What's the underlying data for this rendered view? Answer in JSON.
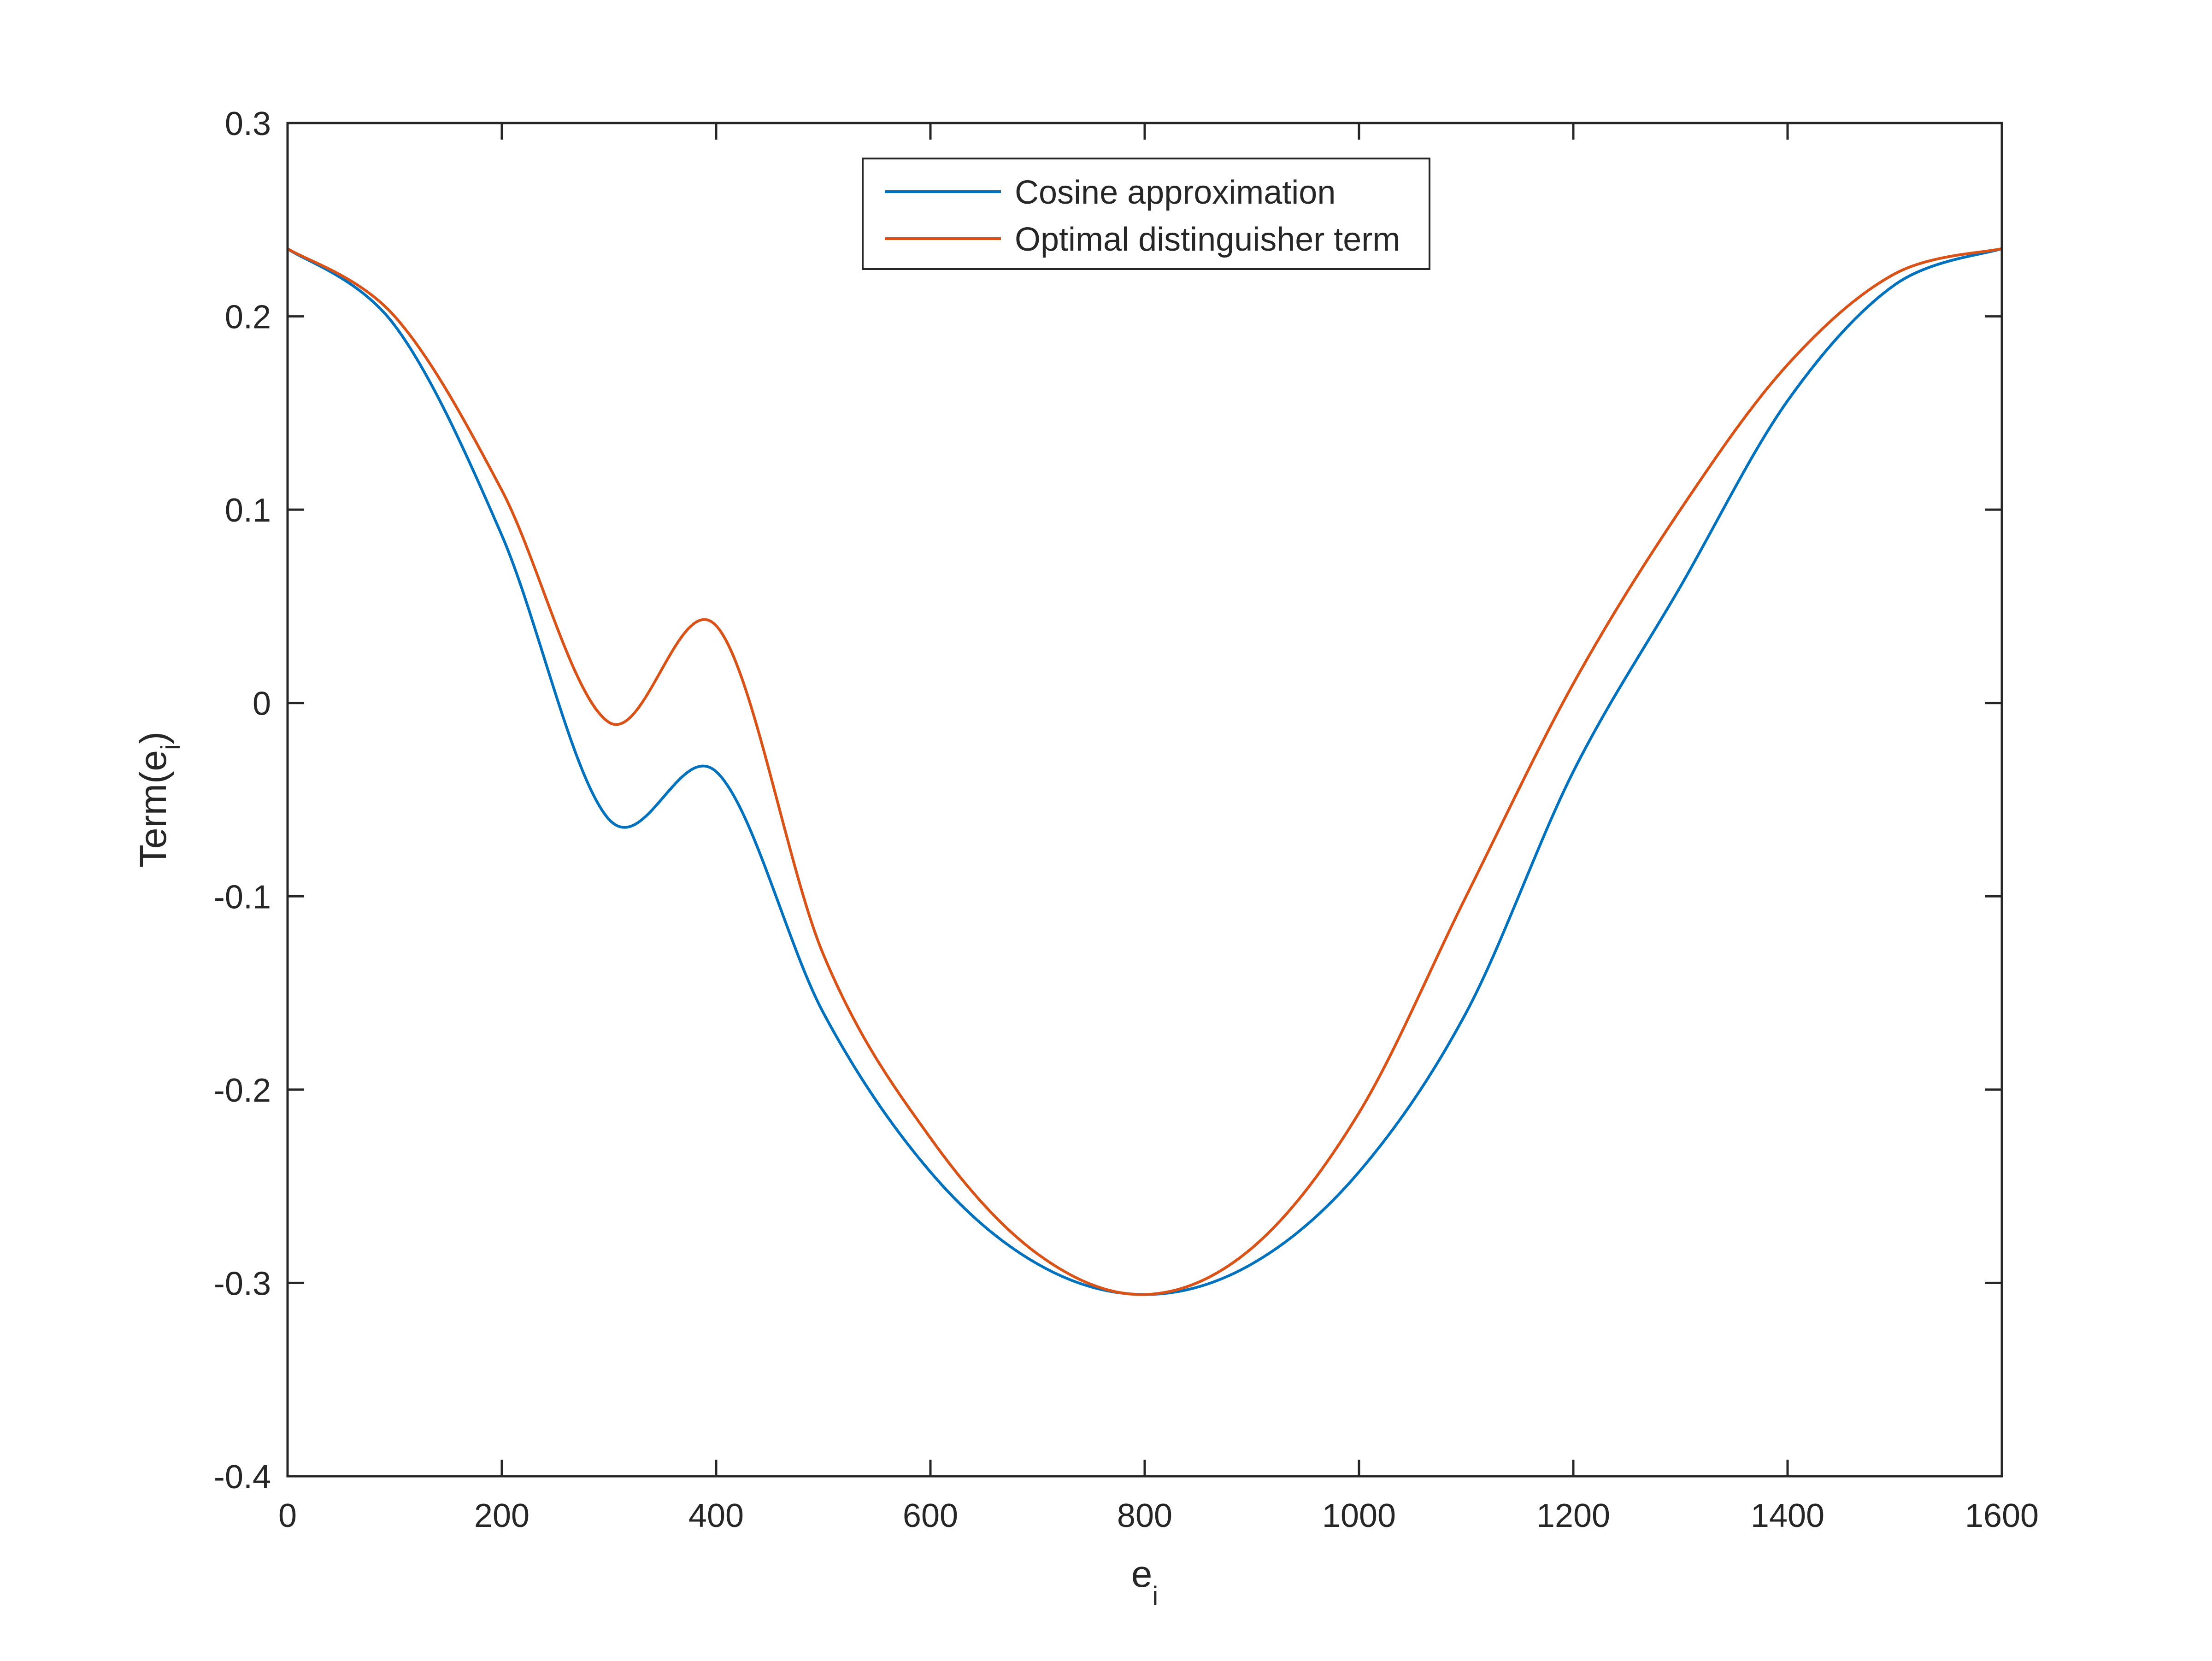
{
  "chart_data": {
    "type": "line",
    "title": "",
    "xlabel": "e",
    "xlabel_subscript": "i",
    "ylabel": "Term(e",
    "ylabel_subscript": "i",
    "ylabel_suffix": ")",
    "xlim": [
      0,
      1600
    ],
    "ylim": [
      -0.4,
      0.3
    ],
    "xticks": [
      0,
      200,
      400,
      600,
      800,
      1000,
      1200,
      1400,
      1600
    ],
    "xtick_labels": [
      "0",
      "200",
      "400",
      "600",
      "800",
      "1000",
      "1200",
      "1400",
      "1600"
    ],
    "yticks": [
      -0.4,
      -0.3,
      -0.2,
      -0.1,
      0,
      0.1,
      0.2,
      0.3
    ],
    "ytick_labels": [
      "-0.4",
      "-0.3",
      "-0.2",
      "-0.1",
      "0",
      "0.1",
      "0.2",
      "0.3"
    ],
    "grid": false,
    "legend_position": "top-center",
    "x": [
      0,
      100,
      200,
      300,
      400,
      500,
      600,
      700,
      800,
      900,
      1000,
      1100,
      1200,
      1300,
      1400,
      1500,
      1600
    ],
    "series": [
      {
        "name": "Cosine approximation",
        "color": "#0072BD",
        "values": [
          0.235,
          0.1953,
          0.0867,
          -0.0602,
          -0.0355,
          -0.1602,
          -0.2426,
          -0.2902,
          -0.306,
          -0.2902,
          -0.2426,
          -0.1602,
          -0.0355,
          0.0602,
          0.1563,
          0.2163,
          0.235
        ]
      },
      {
        "name": "Optimal distinguisher term",
        "color": "#D95319",
        "values": [
          0.235,
          0.2,
          0.11,
          -0.01,
          0.04,
          -0.13,
          -0.225,
          -0.285,
          -0.306,
          -0.282,
          -0.212,
          -0.1,
          0.01,
          0.1,
          0.175,
          0.222,
          0.235
        ]
      }
    ]
  }
}
